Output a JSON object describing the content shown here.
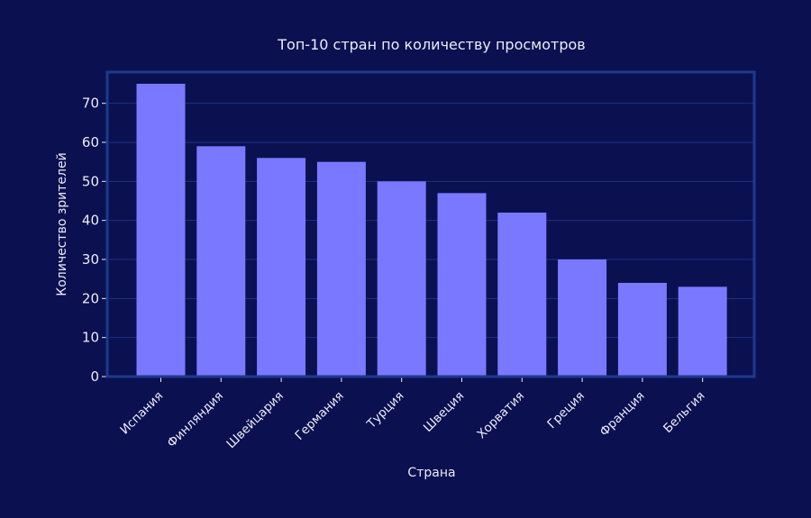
{
  "chart_data": {
    "type": "bar",
    "title": "Топ-10 стран по количеству просмотров",
    "xlabel": "Страна",
    "ylabel": "Количество зрителей",
    "categories": [
      "Испания",
      "Финляндия",
      "Швейцария",
      "Германия",
      "Турция",
      "Швеция",
      "Хорватия",
      "Греция",
      "Франция",
      "Бельгия"
    ],
    "values": [
      75,
      59,
      56,
      55,
      50,
      47,
      42,
      30,
      24,
      23
    ],
    "ylim": [
      0,
      78
    ],
    "yticks": [
      "0",
      "10",
      "20",
      "30",
      "40",
      "50",
      "60",
      "70"
    ],
    "grid": true,
    "colors": {
      "background": "#0b1050",
      "bar": "#7a78ff",
      "frame": "#1c3a8c",
      "grid": "#1f3180",
      "text": "#ececf6"
    }
  }
}
